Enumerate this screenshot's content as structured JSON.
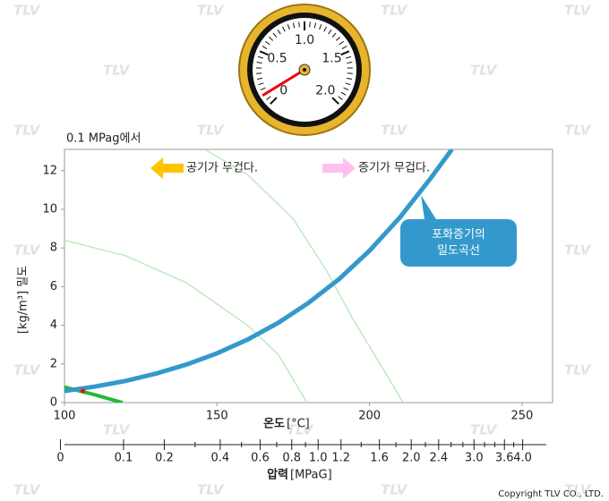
{
  "watermark": "TLV",
  "copyright": "Copyright TLV CO., LTD.",
  "gauge": {
    "ticks": [
      0,
      0.5,
      {
        "value": 1,
        "label": "1.0"
      },
      1.5,
      {
        "value": 2,
        "label": "2.0"
      }
    ],
    "value": 0.1
  },
  "chart_data": {
    "type": "line",
    "subtitle": "0.1 MPag에서",
    "ylabel": "[kg/m³] 밀도",
    "xlabel": "온도",
    "xunit": "[°C]",
    "x2label": "압력",
    "x2unit": "[MPaG]",
    "xlim": [
      100,
      260
    ],
    "xticks": [
      100,
      150,
      200,
      250
    ],
    "ylim": [
      0,
      13.1
    ],
    "yticks": [
      0,
      2,
      4,
      6,
      8,
      10,
      12
    ],
    "x2ticks": [
      0,
      0.1,
      0.2,
      0.4,
      0.6,
      0.8,
      {
        "value": 1,
        "label": "1.0"
      },
      1.2,
      1.6,
      {
        "value": 2,
        "label": "2.0"
      },
      2.4,
      {
        "value": 3,
        "label": "3.0"
      },
      3.6,
      {
        "value": 4,
        "label": "4.0"
      }
    ],
    "x2minorticks": [
      0.3,
      0.5,
      0.7,
      0.9,
      1.4,
      1.8,
      2.2,
      2.6,
      2.8,
      3.2,
      3.4,
      3.8
    ],
    "series": [
      {
        "name": "포화증기의\n밀도곡선",
        "color": "#3399cc",
        "x": [
          100,
          110,
          120,
          130,
          140,
          150,
          160,
          170,
          180,
          190,
          200,
          210,
          220,
          227
        ],
        "values": [
          0.6,
          0.83,
          1.12,
          1.5,
          1.97,
          2.55,
          3.26,
          4.12,
          5.16,
          6.39,
          7.86,
          9.59,
          11.6,
          13.1
        ]
      },
      {
        "color": "#bfeac0",
        "x": [
          100,
          120,
          140,
          160,
          170,
          179.5
        ],
        "values": [
          8.4,
          7.6,
          6.2,
          4.0,
          2.5,
          0
        ]
      },
      {
        "color": "#bfeac0",
        "x": [
          146,
          160,
          175,
          186,
          195,
          205,
          211
        ],
        "values": [
          13.1,
          11.8,
          9.5,
          6.8,
          4.2,
          1.6,
          0
        ]
      },
      {
        "color": "#22bb33",
        "x": [
          100,
          110,
          119
        ],
        "values": [
          0.8,
          0.4,
          0
        ]
      }
    ],
    "marker": {
      "x": 106,
      "y": 0.6,
      "color": "#ff0000"
    },
    "annotations": {
      "air_heavier": "공기가 무겁다.",
      "steam_heavier": "증기가 무겁다."
    }
  }
}
